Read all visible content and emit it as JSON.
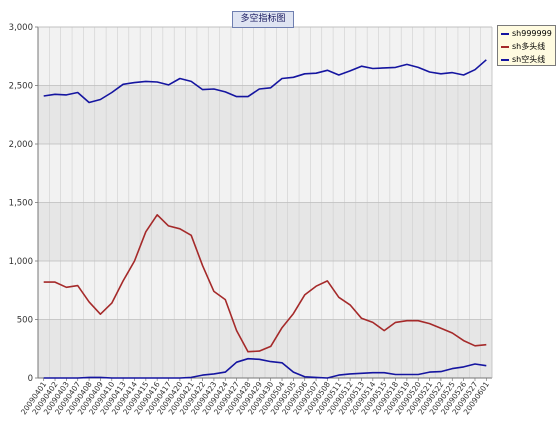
{
  "chart_data": {
    "type": "line",
    "title": "多空指标图",
    "xlabel": "",
    "ylabel": "",
    "ylim": [
      0,
      3000
    ],
    "yticks": [
      0,
      500,
      1000,
      1500,
      2000,
      2500,
      3000
    ],
    "ytick_labels": [
      "0",
      "500",
      "1,000",
      "1,500",
      "2,000",
      "2,500",
      "3,000"
    ],
    "grid": true,
    "legend_position": "top-right",
    "categories": [
      "20090401",
      "20090402",
      "20090403",
      "20090407",
      "20090408",
      "20090409",
      "20090410",
      "20090413",
      "20090414",
      "20090415",
      "20090416",
      "20090417",
      "20090420",
      "20090421",
      "20090422",
      "20090423",
      "20090424",
      "20090427",
      "20090428",
      "20090429",
      "20090430",
      "20090504",
      "20090505",
      "20090506",
      "20090507",
      "20090508",
      "20090511",
      "20090512",
      "20090513",
      "20090514",
      "20090515",
      "20090518",
      "20090519",
      "20090520",
      "20090521",
      "20090522",
      "20090525",
      "20090526",
      "20090527",
      "20090601"
    ],
    "series": [
      {
        "name": "sh999999",
        "color": "#1515a0",
        "values": [
          2410,
          2425,
          2420,
          2440,
          2355,
          2380,
          2440,
          2510,
          2525,
          2535,
          2530,
          2505,
          2560,
          2535,
          2465,
          2470,
          2445,
          2405,
          2405,
          2470,
          2480,
          2560,
          2570,
          2600,
          2605,
          2630,
          2590,
          2625,
          2665,
          2645,
          2650,
          2655,
          2680,
          2655,
          2615,
          2600,
          2610,
          2590,
          2635,
          2720
        ]
      },
      {
        "name": "sh多头线",
        "color": "#a52a2a",
        "values": [
          820,
          820,
          775,
          790,
          650,
          545,
          640,
          830,
          1000,
          1250,
          1395,
          1300,
          1275,
          1220,
          960,
          740,
          670,
          405,
          225,
          230,
          270,
          430,
          550,
          710,
          785,
          830,
          690,
          625,
          510,
          475,
          405,
          475,
          490,
          490,
          465,
          425,
          385,
          320,
          275,
          285
        ]
      },
      {
        "name": "sh空头线",
        "color": "#1515a0",
        "values": [
          0,
          0,
          0,
          0,
          5,
          5,
          0,
          0,
          0,
          0,
          0,
          0,
          0,
          5,
          25,
          35,
          50,
          135,
          165,
          160,
          140,
          130,
          50,
          10,
          5,
          0,
          25,
          35,
          40,
          45,
          45,
          30,
          30,
          30,
          50,
          55,
          80,
          95,
          120,
          105
        ]
      }
    ]
  }
}
